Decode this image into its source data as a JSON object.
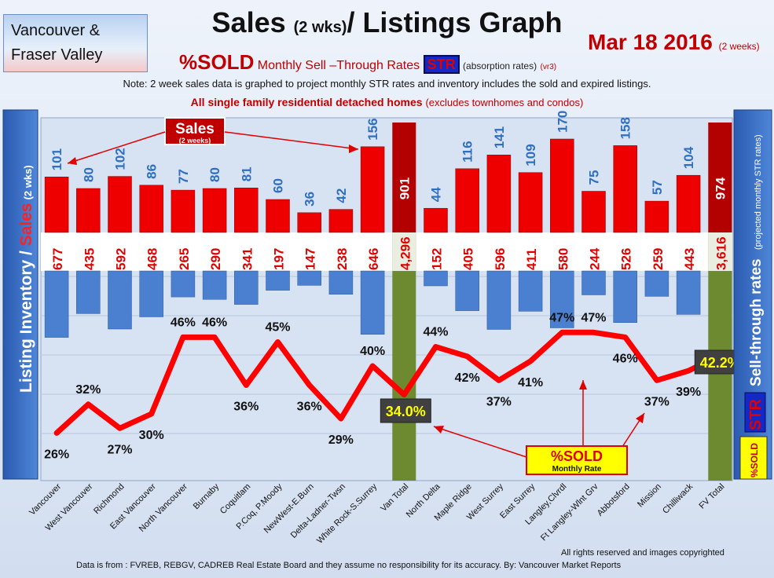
{
  "header": {
    "region_line1": "Vancouver &",
    "region_line2": "Fraser Valley",
    "title_main": "Sales ",
    "title_small": "(2 wks)",
    "title_end": "/ Listings Graph",
    "date": "Mar 18 2016",
    "date_sub": "(2 weeks)",
    "sold_label": "%SOLD",
    "monthly_label": "Monthly",
    "sell_label": "Sell –Through Rates",
    "str_badge": "STR",
    "absorption": "(absorption rates)",
    "version": "(vr3)",
    "note": "Note: 2 week sales data is graphed to project monthly STR rates and inventory includes the sold and expired listings.",
    "detached": "All single family residential detached homes",
    "detached_note": "(excludes townhomes and condos)"
  },
  "side_left": {
    "inventory": "Listing Inventory / ",
    "sales": "Sales",
    "wks": "(2 wks)"
  },
  "side_right": {
    "rates": "Sell-through rates",
    "projected": "(projected monthly STR rates)",
    "str": "STR",
    "sold": "%SOLD"
  },
  "callouts": {
    "sales_title": "Sales",
    "sales_sub": "(2 weeks)",
    "sold_title": "%SOLD",
    "sold_sub": "Monthly Rate"
  },
  "footer": {
    "rights": "All rights reserved and  images copyrighted",
    "source": "Data is from : FVREB, REBGV, CADREB Real Estate Board and they assume no responsibility for its accuracy. By: Vancouver Market Reports"
  },
  "colors": {
    "sales": "#ee0000",
    "inventory": "#4a80cf",
    "total_sales": "#b30000",
    "total_inventory": "#6e8a30",
    "line": "#ff0000",
    "accent": "#c00000"
  },
  "chart_data": {
    "type": "bar",
    "categories": [
      "Vancouver",
      "West Vancouver",
      "Richmond",
      "East Vancouver",
      "North Vancouver",
      "Burnaby",
      "Coquitlam",
      "P.Coq, P.Moody",
      "NewWest-E.Burn",
      "Delta-Ladner-Twsn",
      "White Rock-S.Surrey",
      "Van Total",
      "North Delta",
      "Maple Ridge",
      "West Surrey",
      "East Surrey",
      "Langley,Clvrdl",
      "Ft Langley-Wlnt Grv",
      "Abbotsford",
      "Mission",
      "Chilliwack",
      "FV Total"
    ],
    "sales_labels": [
      "101",
      "80",
      "102",
      "86",
      "77",
      "80",
      "81",
      "60",
      "36",
      "42",
      "156",
      "901",
      "44",
      "116",
      "141",
      "109",
      "170",
      "75",
      "158",
      "57",
      "104",
      "974"
    ],
    "inventory_labels": [
      "677",
      "435",
      "592",
      "468",
      "265",
      "290",
      "341",
      "197",
      "147",
      "238",
      "646",
      "4,296",
      "152",
      "405",
      "596",
      "411",
      "580",
      "244",
      "526",
      "259",
      "443",
      "3,616"
    ],
    "series": [
      {
        "name": "Sales",
        "values": [
          101,
          80,
          102,
          86,
          77,
          80,
          81,
          60,
          36,
          42,
          156,
          901,
          44,
          116,
          141,
          109,
          170,
          75,
          158,
          57,
          104,
          974
        ]
      },
      {
        "name": "Listing Inventory",
        "values": [
          677,
          435,
          592,
          468,
          265,
          290,
          341,
          197,
          147,
          238,
          646,
          4296,
          152,
          405,
          596,
          411,
          580,
          244,
          526,
          259,
          443,
          3616
        ]
      },
      {
        "name": "%SOLD",
        "values": [
          26,
          32,
          27,
          30,
          46,
          46,
          36,
          45,
          36,
          29,
          40,
          34,
          44,
          42,
          37,
          41,
          47,
          47,
          46,
          37,
          39,
          42.2
        ]
      }
    ],
    "str_labels": [
      "26%",
      "32%",
      "27%",
      "30%",
      "46%",
      "46%",
      "36%",
      "45%",
      "36%",
      "29%",
      "40%",
      "34.0%",
      "44%",
      "42%",
      "37%",
      "41%",
      "47%",
      "47%",
      "46%",
      "37%",
      "39%",
      "42.2%"
    ],
    "total_indices": [
      11,
      21
    ]
  }
}
